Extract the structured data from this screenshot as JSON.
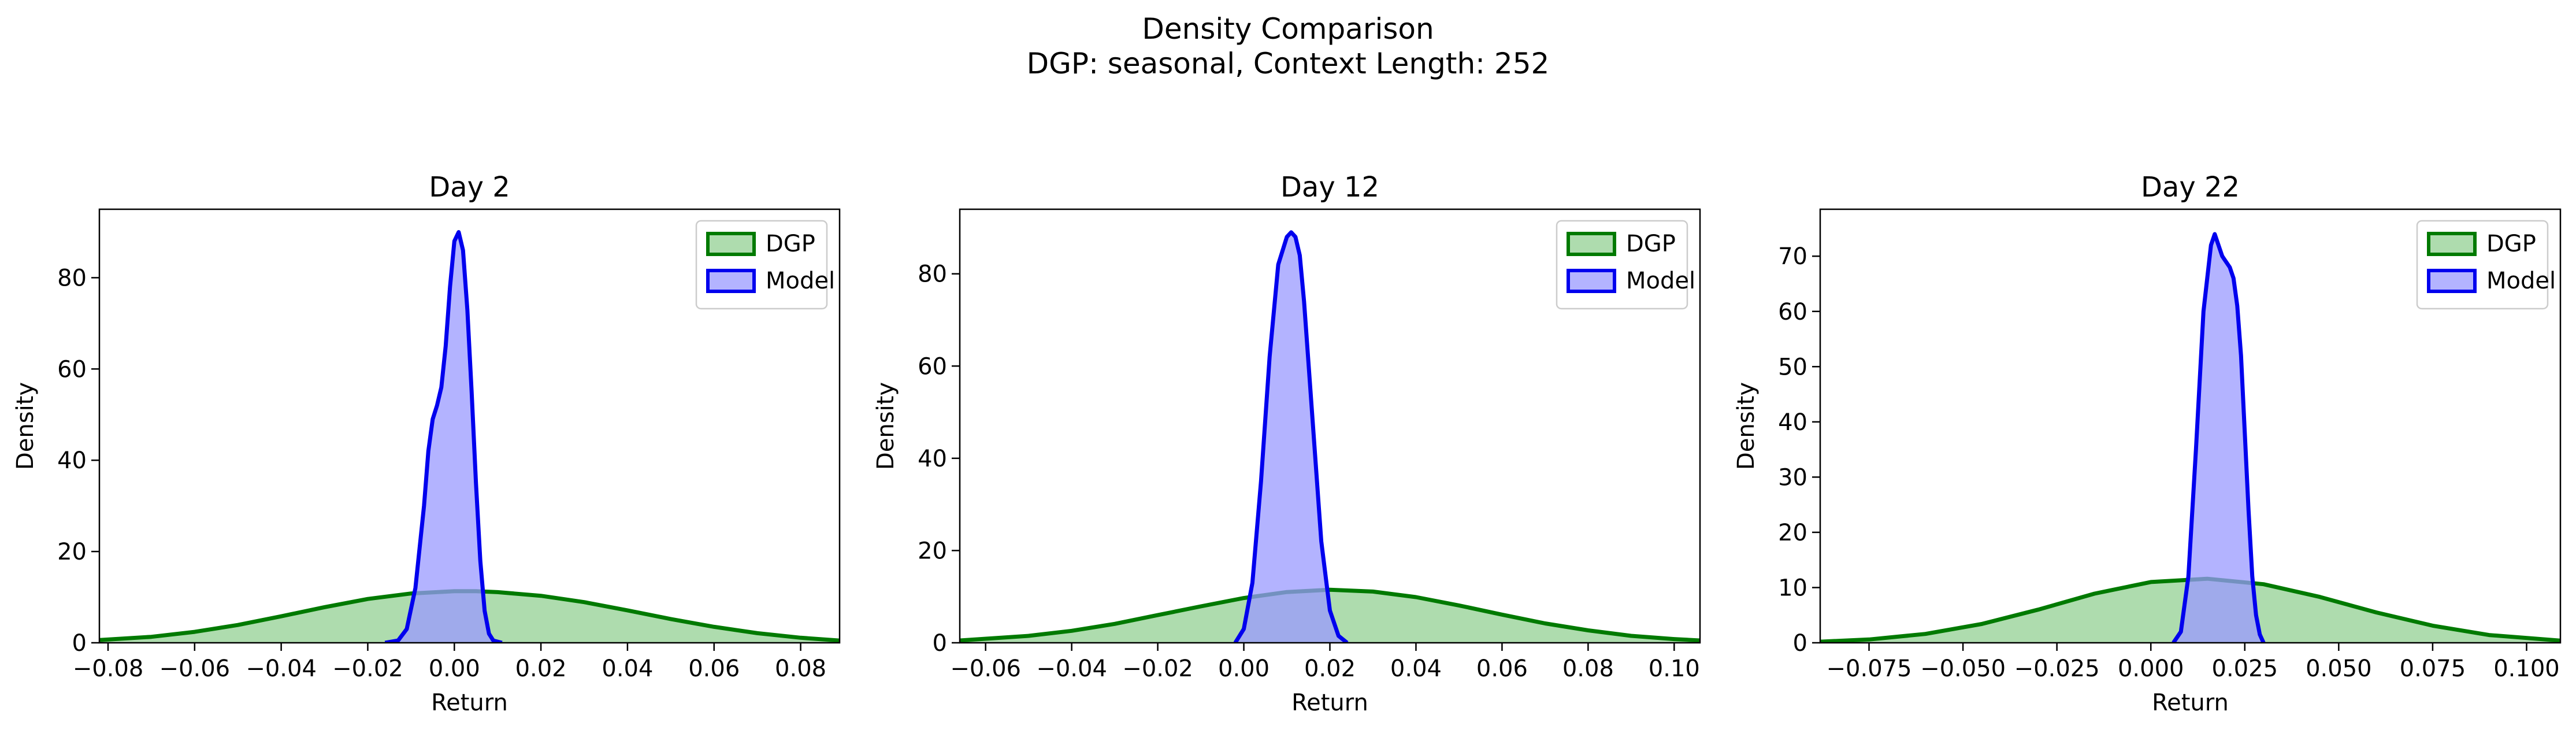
{
  "figure": {
    "title": "Density Comparison",
    "subtitle": "DGP: seasonal, Context Length: 252"
  },
  "colors": {
    "dgp_line": "#007a00",
    "dgp_fill": "#9ad39a",
    "model_line": "#0000ee",
    "model_fill": "#9999ff",
    "axis": "#000000"
  },
  "chart_data": [
    {
      "type": "area",
      "title": "Day 2",
      "xlabel": "Return",
      "ylabel": "Density",
      "xlim": [
        -0.082,
        0.089
      ],
      "ylim": [
        0,
        95
      ],
      "xticks": [
        -0.08,
        -0.06,
        -0.04,
        -0.02,
        0.0,
        0.02,
        0.04,
        0.06,
        0.08
      ],
      "xtick_labels": [
        "−0.08",
        "−0.06",
        "−0.04",
        "−0.02",
        "0.00",
        "0.02",
        "0.04",
        "0.06",
        "0.08"
      ],
      "yticks": [
        0,
        20,
        40,
        60,
        80
      ],
      "ytick_labels": [
        "0",
        "20",
        "40",
        "60",
        "80"
      ],
      "legend_position": "upper right",
      "series": [
        {
          "name": "DGP",
          "x": [
            -0.082,
            -0.07,
            -0.06,
            -0.05,
            -0.04,
            -0.03,
            -0.02,
            -0.01,
            0.0,
            0.005,
            0.01,
            0.02,
            0.03,
            0.04,
            0.05,
            0.06,
            0.07,
            0.08,
            0.089
          ],
          "y": [
            0.6,
            1.3,
            2.4,
            3.9,
            5.8,
            7.8,
            9.6,
            10.8,
            11.3,
            11.3,
            11.1,
            10.3,
            8.9,
            7.1,
            5.2,
            3.5,
            2.1,
            1.1,
            0.5
          ]
        },
        {
          "name": "Model",
          "x": [
            -0.016,
            -0.013,
            -0.011,
            -0.009,
            -0.007,
            -0.006,
            -0.005,
            -0.004,
            -0.003,
            -0.002,
            -0.001,
            0.0,
            0.001,
            0.002,
            0.003,
            0.004,
            0.005,
            0.006,
            0.007,
            0.008,
            0.009,
            0.011
          ],
          "y": [
            0,
            0.5,
            3,
            12,
            30,
            42,
            49,
            52,
            56,
            65,
            78,
            88,
            90,
            86,
            73,
            55,
            35,
            18,
            7,
            2,
            0.5,
            0
          ]
        }
      ]
    },
    {
      "type": "area",
      "title": "Day 12",
      "xlabel": "Return",
      "ylabel": "Density",
      "xlim": [
        -0.066,
        0.106
      ],
      "ylim": [
        0,
        94
      ],
      "xticks": [
        -0.06,
        -0.04,
        -0.02,
        0.0,
        0.02,
        0.04,
        0.06,
        0.08,
        0.1
      ],
      "xtick_labels": [
        "−0.06",
        "−0.04",
        "−0.02",
        "0.00",
        "0.02",
        "0.04",
        "0.06",
        "0.08",
        "0.10"
      ],
      "yticks": [
        0,
        20,
        40,
        60,
        80
      ],
      "ytick_labels": [
        "0",
        "20",
        "40",
        "60",
        "80"
      ],
      "legend_position": "upper right",
      "series": [
        {
          "name": "DGP",
          "x": [
            -0.066,
            -0.05,
            -0.04,
            -0.03,
            -0.02,
            -0.01,
            0.0,
            0.01,
            0.02,
            0.03,
            0.04,
            0.05,
            0.06,
            0.07,
            0.08,
            0.09,
            0.1,
            0.106
          ],
          "y": [
            0.5,
            1.5,
            2.6,
            4.1,
            6.0,
            7.9,
            9.7,
            11.0,
            11.5,
            11.1,
            9.9,
            8.1,
            6.1,
            4.2,
            2.7,
            1.5,
            0.8,
            0.5
          ]
        },
        {
          "name": "Model",
          "x": [
            -0.002,
            0.0,
            0.002,
            0.004,
            0.006,
            0.008,
            0.01,
            0.011,
            0.012,
            0.013,
            0.014,
            0.016,
            0.018,
            0.02,
            0.022,
            0.024
          ],
          "y": [
            0,
            3,
            13,
            35,
            62,
            82,
            88,
            89,
            88,
            84,
            74,
            48,
            22,
            7,
            1.5,
            0
          ]
        }
      ]
    },
    {
      "type": "area",
      "title": "Day 22",
      "xlabel": "Return",
      "ylabel": "Density",
      "xlim": [
        -0.088,
        0.109
      ],
      "ylim": [
        0,
        78.5
      ],
      "xticks": [
        -0.075,
        -0.05,
        -0.025,
        0.0,
        0.025,
        0.05,
        0.075,
        0.1
      ],
      "xtick_labels": [
        "−0.075",
        "−0.050",
        "−0.025",
        "0.000",
        "0.025",
        "0.050",
        "0.075",
        "0.100"
      ],
      "yticks": [
        0,
        10,
        20,
        30,
        40,
        50,
        60,
        70
      ],
      "ytick_labels": [
        "0",
        "10",
        "20",
        "30",
        "40",
        "50",
        "60",
        "70"
      ],
      "legend_position": "upper right",
      "series": [
        {
          "name": "DGP",
          "x": [
            -0.088,
            -0.075,
            -0.06,
            -0.045,
            -0.03,
            -0.015,
            0.0,
            0.015,
            0.03,
            0.045,
            0.06,
            0.075,
            0.09,
            0.109
          ],
          "y": [
            0.2,
            0.6,
            1.6,
            3.4,
            6.0,
            8.9,
            11.0,
            11.6,
            10.6,
            8.3,
            5.5,
            3.1,
            1.4,
            0.4
          ]
        },
        {
          "name": "Model",
          "x": [
            0.006,
            0.008,
            0.01,
            0.012,
            0.014,
            0.016,
            0.017,
            0.018,
            0.019,
            0.02,
            0.021,
            0.022,
            0.023,
            0.024,
            0.025,
            0.026,
            0.027,
            0.028,
            0.029,
            0.03
          ],
          "y": [
            0,
            2,
            12,
            35,
            60,
            72,
            74,
            72,
            70,
            69,
            68,
            66,
            61,
            52,
            38,
            24,
            12,
            5,
            1.5,
            0
          ]
        }
      ]
    }
  ]
}
